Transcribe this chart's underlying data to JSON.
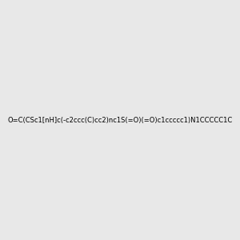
{
  "smiles": "O=C(CSc1[nH]c(-c2ccc(C)cc2)nc1S(=O)(=O)c1ccccc1)N1CCCCC1C",
  "image_size": 300,
  "background_color": "#e8e8e8"
}
